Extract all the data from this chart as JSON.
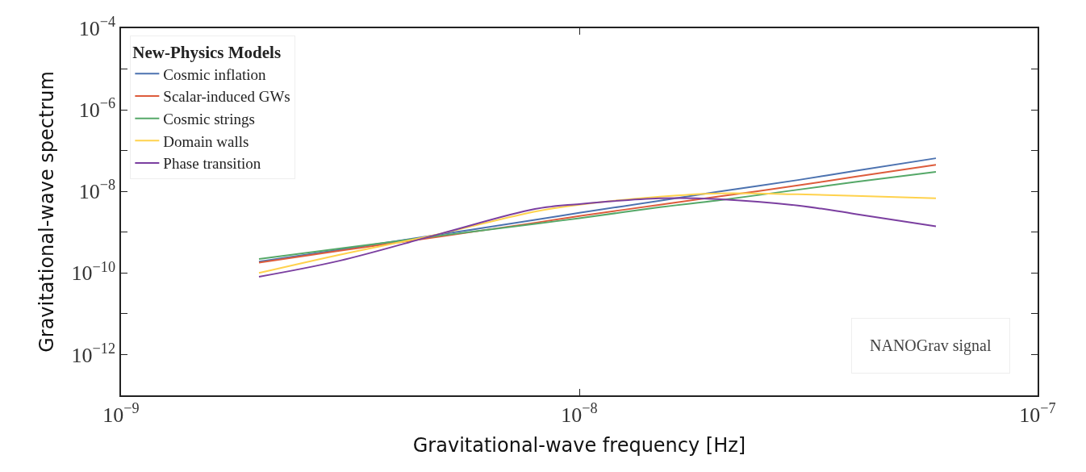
{
  "chart_data": {
    "type": "line",
    "xlabel": "Gravitational-wave frequency [Hz]",
    "ylabel": "Gravitational-wave spectrum",
    "legend_title": "New-Physics Models",
    "x": [
      2e-09,
      3e-09,
      5e-09,
      8e-09,
      1e-08,
      1.5e-08,
      2e-08,
      3e-08,
      4e-08,
      6e-08
    ],
    "series": [
      {
        "name": "Cosmic inflation",
        "color": "#4c72b0",
        "values": [
          1.9e-10,
          3.7e-10,
          8.9e-10,
          2e-09,
          3e-09,
          5.9e-09,
          9.8e-09,
          1.9e-08,
          3.2e-08,
          6.5e-08
        ]
      },
      {
        "name": "Scalar-induced GWs",
        "color": "#dd5c3c",
        "values": [
          1.8e-10,
          3.5e-10,
          7.9e-10,
          1.7e-09,
          2.5e-09,
          4.7e-09,
          7.4e-09,
          1.4e-08,
          2.3e-08,
          4.5e-08
        ]
      },
      {
        "name": "Cosmic strings",
        "color": "#55a868",
        "values": [
          2.2e-10,
          4e-10,
          8.3e-10,
          1.6e-09,
          2.2e-09,
          4.1e-09,
          6e-09,
          1.1e-08,
          1.7e-08,
          3e-08
        ]
      },
      {
        "name": "Domain walls",
        "color": "#ffd24d",
        "values": [
          1e-10,
          2.8e-10,
          9.3e-10,
          3.2e-09,
          4.7e-09,
          7.4e-09,
          8.9e-09,
          8.5e-09,
          7.8e-09,
          6.8e-09
        ]
      },
      {
        "name": "Phase transition",
        "color": "#7b3fa0",
        "values": [
          8.1e-11,
          2e-10,
          9.3e-10,
          3.7e-09,
          4.9e-09,
          6.8e-09,
          6.5e-09,
          4.5e-09,
          2.8e-09,
          1.4e-09
        ]
      }
    ],
    "log": "xy",
    "xlim": [
      1e-09,
      1e-07
    ],
    "ylim": [
      1e-13,
      0.0001
    ],
    "xticks": [
      {
        "value": 1e-09,
        "label": "10$^{−9}$"
      },
      {
        "value": 1e-08,
        "label": "10$^{−8}$"
      },
      {
        "value": 1e-07,
        "label": "10$^{−7}$"
      }
    ],
    "yticks": [
      {
        "value": 1e-12,
        "label": "10$^{−12}$"
      },
      {
        "value": 1e-11,
        "label": null
      },
      {
        "value": 1e-10,
        "label": "10$^{−10}$"
      },
      {
        "value": 1e-09,
        "label": null
      },
      {
        "value": 1e-08,
        "label": "10$^{−8}$"
      },
      {
        "value": 1e-07,
        "label": null
      },
      {
        "value": 1e-06,
        "label": "10$^{−6}$"
      },
      {
        "value": 1e-05,
        "label": null
      },
      {
        "value": 0.0001,
        "label": "10$^{−4}$"
      }
    ],
    "annotations": [
      "NANOGrav signal"
    ],
    "legend": "top left",
    "marker": "none",
    "line_style": "solid"
  }
}
